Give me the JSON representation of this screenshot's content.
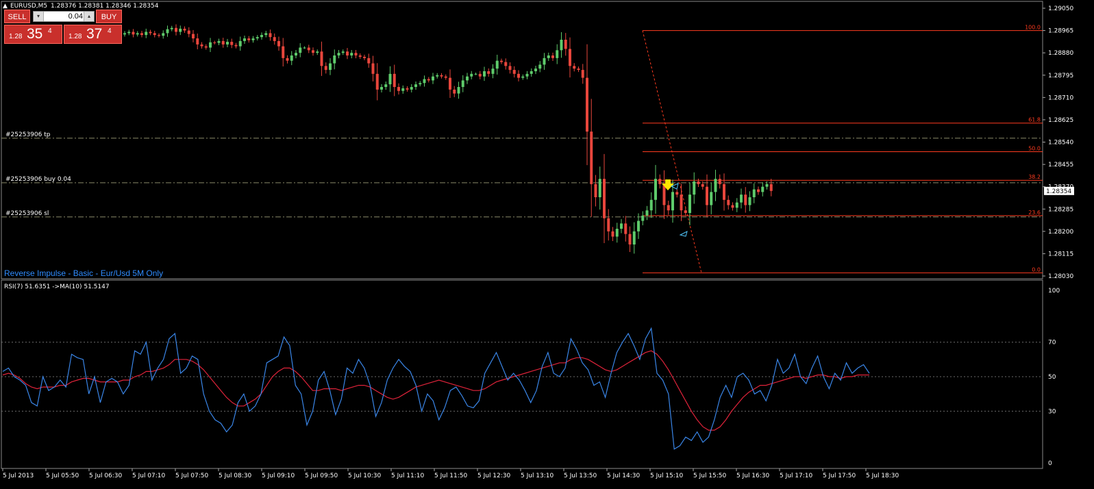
{
  "window": {
    "symbol_title": "EURUSD,M5",
    "ohlc": "1.28376 1.28381 1.28346 1.28354"
  },
  "trade_panel": {
    "sell_label": "SELL",
    "buy_label": "BUY",
    "lot_value": "0.04",
    "sell_price_prefix": "1.28",
    "sell_price_big": "35",
    "sell_price_sup": "4",
    "buy_price_prefix": "1.28",
    "buy_price_big": "37",
    "buy_price_sup": "4"
  },
  "indicator_label": "Reverse Impulse - Basic - Eur/Usd 5M Only",
  "order_lines": [
    {
      "label": "#25253906 tp",
      "price": 1.28555
    },
    {
      "label": "#25253906 buy 0.04",
      "price": 1.28385
    },
    {
      "label": "#25253906 sl",
      "price": 1.28255
    }
  ],
  "price_axis": {
    "ticks": [
      "1.29050",
      "1.28965",
      "1.28880",
      "1.28795",
      "1.28710",
      "1.28625",
      "1.28540",
      "1.28455",
      "1.28370",
      "1.28285",
      "1.28200",
      "1.28115",
      "1.28030"
    ],
    "current_price": "1.28354"
  },
  "fibonacci": {
    "levels": [
      "100.0",
      "61.8",
      "50.0",
      "38.2",
      "23.6",
      "0.0"
    ],
    "high": 1.28965,
    "low": 1.28042
  },
  "rsi_panel": {
    "label": "RSI(7) 51.6351  ->MA(10) 51.5147",
    "ticks": [
      "100",
      "70",
      "50",
      "30",
      "0"
    ]
  },
  "time_axis": {
    "labels": [
      "5 Jul 2013",
      "5 Jul 05:50",
      "5 Jul 06:30",
      "5 Jul 07:10",
      "5 Jul 07:50",
      "5 Jul 08:30",
      "5 Jul 09:10",
      "5 Jul 09:50",
      "5 Jul 10:30",
      "5 Jul 11:10",
      "5 Jul 11:50",
      "5 Jul 12:30",
      "5 Jul 13:10",
      "5 Jul 13:50",
      "5 Jul 14:30",
      "5 Jul 15:10",
      "5 Jul 15:50",
      "5 Jul 16:30",
      "5 Jul 17:10",
      "5 Jul 17:50",
      "5 Jul 18:30"
    ]
  },
  "colors": {
    "bull": "#5ecb6b",
    "bear": "#e8463c",
    "fib": "#ff3b1f",
    "rsi": "#3a86e8",
    "ma": "#e0233a",
    "indicator_text": "#2f8cff",
    "grid": "#6b6b6b"
  },
  "chart_data": {
    "type": "candlestick",
    "closes": [
      1.28955,
      1.2896,
      1.2895,
      1.28955,
      1.28948,
      1.2896,
      1.28955,
      1.28948,
      1.28945,
      1.28955,
      1.2897,
      1.28975,
      1.2896,
      1.28972,
      1.28965,
      1.28952,
      1.28935,
      1.28912,
      1.28905,
      1.289,
      1.2892,
      1.28918,
      1.28925,
      1.28912,
      1.28922,
      1.2891,
      1.28905,
      1.28925,
      1.28935,
      1.28928,
      1.28935,
      1.2894,
      1.28948,
      1.28955,
      1.2894,
      1.28925,
      1.28905,
      1.2886,
      1.2885,
      1.2887,
      1.2888,
      1.289,
      1.289,
      1.2889,
      1.2888,
      1.28885,
      1.2883,
      1.28815,
      1.2884,
      1.2887,
      1.2888,
      1.28885,
      1.2887,
      1.2888,
      1.2887,
      1.28865,
      1.2886,
      1.2884,
      1.288,
      1.2874,
      1.2875,
      1.2876,
      1.288,
      1.2875,
      1.28735,
      1.28745,
      1.2874,
      1.2875,
      1.2876,
      1.28765,
      1.2878,
      1.28775,
      1.2879,
      1.28795,
      1.2879,
      1.28785,
      1.2874,
      1.28725,
      1.2875,
      1.28775,
      1.2879,
      1.288,
      1.288,
      1.2879,
      1.2881,
      1.288,
      1.2882,
      1.2885,
      1.28845,
      1.2883,
      1.28815,
      1.288,
      1.28785,
      1.2879,
      1.288,
      1.2881,
      1.2882,
      1.28835,
      1.2886,
      1.2887,
      1.2886,
      1.2889,
      1.2893,
      1.28895,
      1.2883,
      1.2882,
      1.28815,
      1.28785,
      1.2858,
      1.2838,
      1.2833,
      1.284,
      1.2825,
      1.282,
      1.2818,
      1.2821,
      1.2823,
      1.2819,
      1.2815,
      1.282,
      1.2824,
      1.2826,
      1.2828,
      1.2832,
      1.284,
      1.2838,
      1.283,
      1.2828,
      1.2835,
      1.2834,
      1.2828,
      1.2827,
      1.2834,
      1.2839,
      1.2838,
      1.2837,
      1.283,
      1.2835,
      1.284,
      1.2838,
      1.2832,
      1.283,
      1.2829,
      1.2831,
      1.2834,
      1.283,
      1.2833,
      1.2836,
      1.2835,
      1.2837,
      1.2838,
      1.28354
    ],
    "rsi": [
      53,
      55,
      50,
      48,
      45,
      35,
      33,
      50,
      42,
      44,
      48,
      44,
      63,
      61,
      60,
      40,
      50,
      35,
      47,
      49,
      47,
      40,
      45,
      65,
      63,
      70,
      48,
      55,
      60,
      72,
      75,
      52,
      55,
      62,
      60,
      40,
      30,
      25,
      23,
      18,
      22,
      35,
      40,
      30,
      33,
      40,
      58,
      60,
      62,
      73,
      68,
      45,
      40,
      22,
      30,
      48,
      53,
      42,
      28,
      37,
      55,
      52,
      60,
      55,
      45,
      27,
      35,
      48,
      55,
      60,
      56,
      53,
      45,
      30,
      40,
      36,
      25,
      32,
      42,
      44,
      39,
      33,
      32,
      36,
      52,
      58,
      64,
      56,
      48,
      52,
      48,
      42,
      35,
      42,
      56,
      64,
      52,
      50,
      55,
      72,
      66,
      58,
      54,
      45,
      47,
      38,
      52,
      64,
      70,
      75,
      68,
      60,
      72,
      78,
      52,
      48,
      40,
      8,
      10,
      15,
      13,
      18,
      12,
      15,
      25,
      38,
      45,
      38,
      50,
      52,
      48,
      40,
      42,
      36,
      45,
      60,
      52,
      55,
      63,
      50,
      46,
      55,
      62,
      50,
      43,
      52,
      48,
      58,
      52,
      55,
      57,
      52
    ],
    "rsi_ma": [
      51,
      52,
      51,
      49,
      46,
      44,
      43,
      44,
      44,
      44,
      45,
      45,
      47,
      48,
      49,
      49,
      48,
      47,
      47,
      47,
      47,
      48,
      48,
      50,
      51,
      53,
      53,
      54,
      55,
      57,
      60,
      60,
      60,
      59,
      57,
      54,
      50,
      46,
      42,
      38,
      35,
      33,
      33,
      35,
      37,
      40,
      45,
      50,
      53,
      55,
      55,
      53,
      50,
      46,
      42,
      42,
      43,
      43,
      43,
      42,
      43,
      44,
      45,
      45,
      44,
      42,
      40,
      38,
      37,
      38,
      40,
      42,
      44,
      45,
      46,
      47,
      48,
      47,
      46,
      45,
      44,
      43,
      42,
      42,
      43,
      45,
      47,
      48,
      49,
      50,
      51,
      52,
      53,
      54,
      55,
      56,
      57,
      58,
      58,
      60,
      61,
      61,
      60,
      58,
      56,
      54,
      53,
      54,
      56,
      58,
      60,
      62,
      64,
      65,
      63,
      59,
      54,
      48,
      42,
      36,
      30,
      25,
      21,
      19,
      19,
      21,
      25,
      30,
      34,
      38,
      41,
      43,
      45,
      45,
      46,
      47,
      48,
      49,
      50,
      50,
      49,
      50,
      51,
      51,
      50,
      50,
      49,
      50,
      50,
      51,
      51,
      51
    ],
    "ylim": [
      1.2803,
      1.2905
    ],
    "rsi_ylim": [
      0,
      100
    ]
  }
}
